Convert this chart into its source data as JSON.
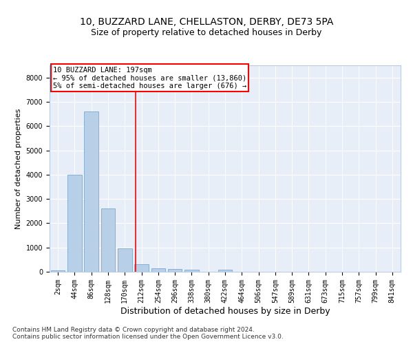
{
  "title1": "10, BUZZARD LANE, CHELLASTON, DERBY, DE73 5PA",
  "title2": "Size of property relative to detached houses in Derby",
  "xlabel": "Distribution of detached houses by size in Derby",
  "ylabel": "Number of detached properties",
  "bar_labels": [
    "2sqm",
    "44sqm",
    "86sqm",
    "128sqm",
    "170sqm",
    "212sqm",
    "254sqm",
    "296sqm",
    "338sqm",
    "380sqm",
    "422sqm",
    "464sqm",
    "506sqm",
    "547sqm",
    "589sqm",
    "631sqm",
    "673sqm",
    "715sqm",
    "757sqm",
    "799sqm",
    "841sqm"
  ],
  "bar_values": [
    55,
    4000,
    6600,
    2600,
    950,
    310,
    130,
    100,
    80,
    0,
    80,
    0,
    0,
    0,
    0,
    0,
    0,
    0,
    0,
    0,
    0
  ],
  "bar_color": "#b8cfe8",
  "bar_edge_color": "#7aa8d0",
  "background_color": "#e8eef8",
  "grid_color": "#ffffff",
  "annotation_line1": "10 BUZZARD LANE: 197sqm",
  "annotation_line2": "← 95% of detached houses are smaller (13,860)",
  "annotation_line3": "5% of semi-detached houses are larger (676) →",
  "red_line_index": 5,
  "ylim": [
    0,
    8500
  ],
  "yticks": [
    0,
    1000,
    2000,
    3000,
    4000,
    5000,
    6000,
    7000,
    8000
  ],
  "footer1": "Contains HM Land Registry data © Crown copyright and database right 2024.",
  "footer2": "Contains public sector information licensed under the Open Government Licence v3.0.",
  "title1_fontsize": 10,
  "title2_fontsize": 9,
  "xlabel_fontsize": 9,
  "ylabel_fontsize": 8,
  "tick_fontsize": 7,
  "annotation_fontsize": 7.5,
  "footer_fontsize": 6.5
}
